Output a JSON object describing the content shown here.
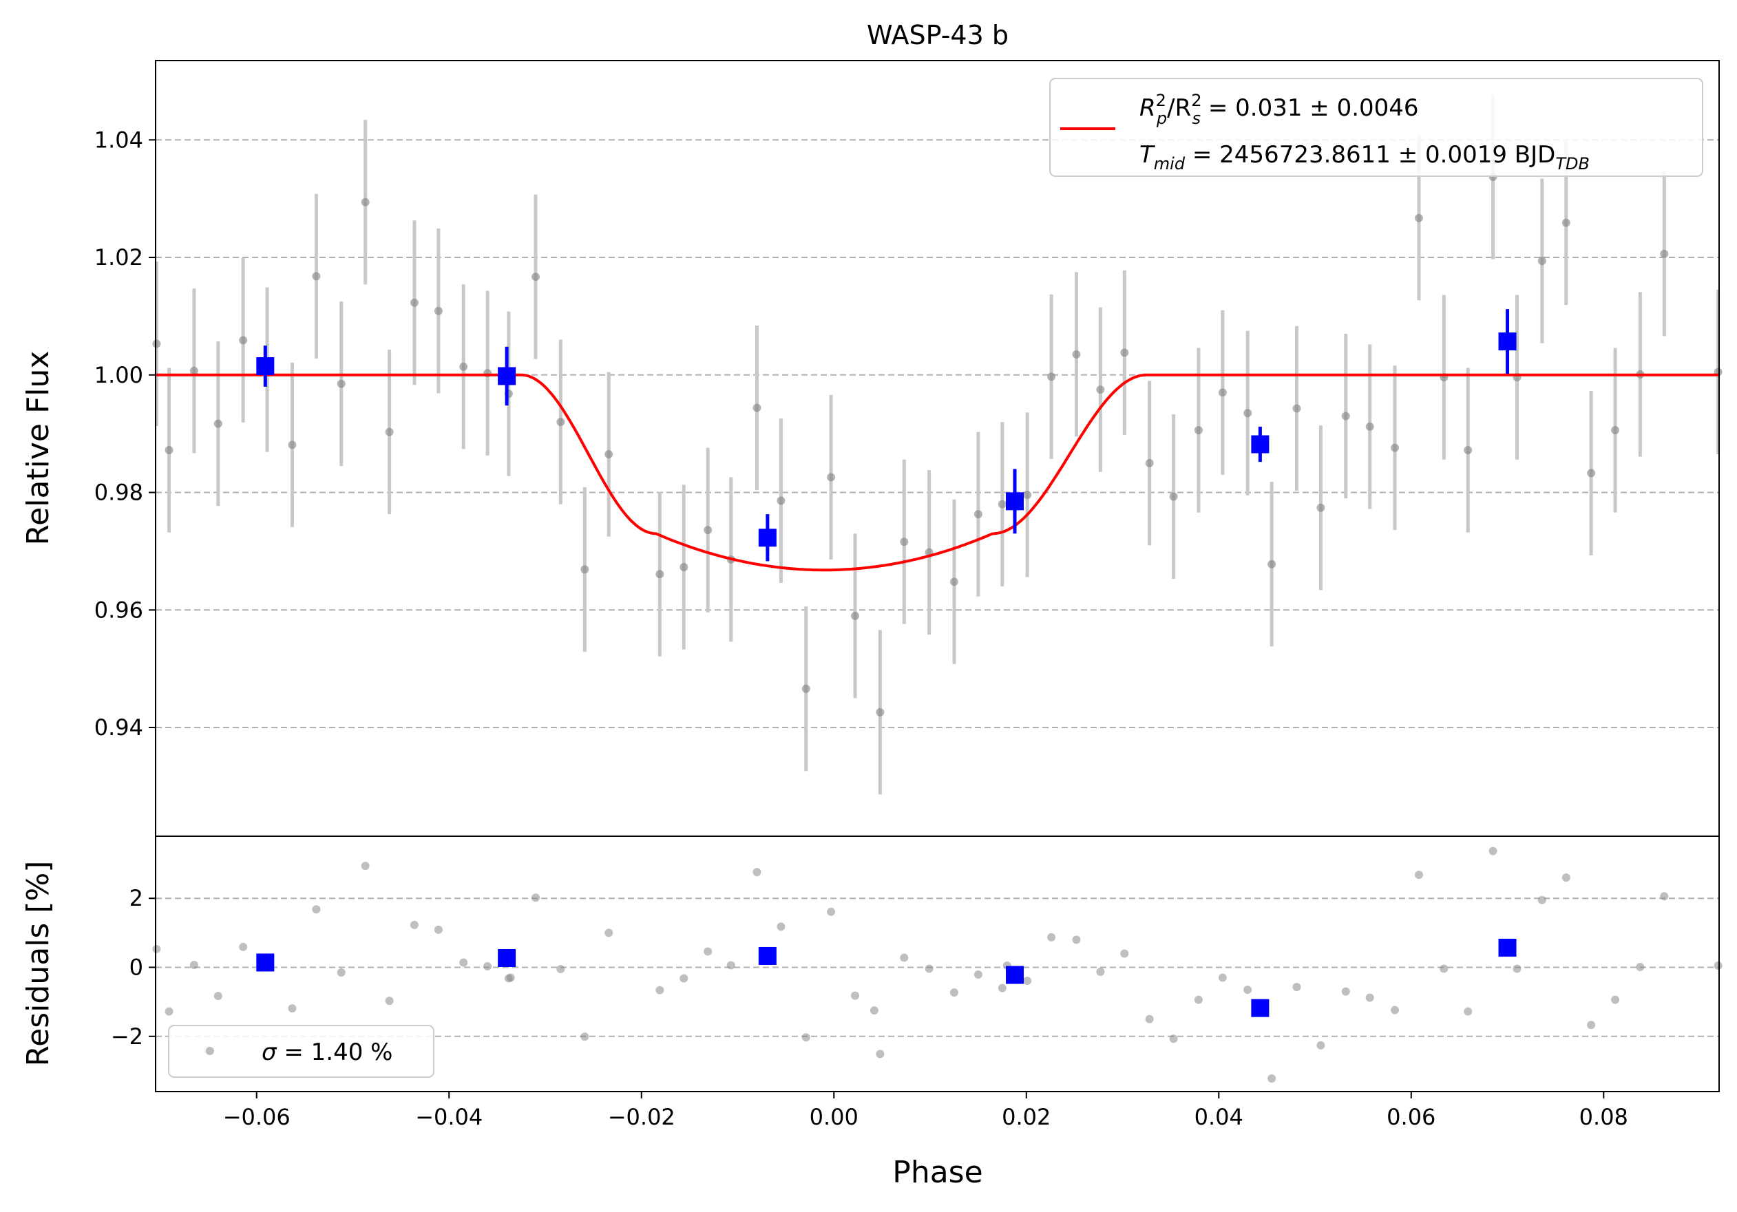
{
  "chart_data": {
    "type": "scatter",
    "title": "WASP-43 b",
    "xlabel": "Phase",
    "xlim": [
      -0.0705,
      0.092
    ],
    "xticks": [
      -0.06,
      -0.04,
      -0.02,
      0.0,
      0.02,
      0.04,
      0.06,
      0.08
    ],
    "xtick_labels": [
      "−0.06",
      "−0.04",
      "−0.02",
      "0.00",
      "0.02",
      "0.04",
      "0.06",
      "0.08"
    ],
    "grid": "horizontal dashed",
    "colors": {
      "raw": "#808080",
      "raw_err": "#c8c8c8",
      "binned": "#0000ff",
      "model": "#ff0000",
      "grid": "#b0b0b0"
    },
    "top_panel": {
      "ylabel": "Relative Flux",
      "ylim": [
        0.9215,
        1.0535
      ],
      "yticks": [
        0.94,
        0.96,
        0.98,
        1.0,
        1.02,
        1.04
      ],
      "ytick_labels": [
        "0.94",
        "0.96",
        "0.98",
        "1.00",
        "1.02",
        "1.04"
      ],
      "raw_error": 0.014,
      "raw_x": [
        -0.0704,
        -0.0691,
        -0.0665,
        -0.064,
        -0.0614,
        -0.0589,
        -0.0563,
        -0.0538,
        -0.0512,
        -0.0487,
        -0.0462,
        -0.0436,
        -0.0411,
        -0.0385,
        -0.036,
        -0.0338,
        -0.031,
        -0.0284,
        -0.0259,
        -0.0234,
        -0.0181,
        -0.0156,
        -0.0131,
        -0.0107,
        -0.008,
        -0.0055,
        -0.0029,
        -0.0003,
        0.0022,
        0.0048,
        0.0073,
        0.0099,
        0.0125,
        0.015,
        0.0175,
        0.0201,
        0.0226,
        0.0252,
        0.0277,
        0.0302,
        0.0328,
        0.0353,
        0.0379,
        0.0404,
        0.043,
        0.0455,
        0.0481,
        0.0506,
        0.0532,
        0.0557,
        0.0583,
        0.0608,
        0.0634,
        0.0659,
        0.0685,
        0.071,
        0.0736,
        0.0761,
        0.0787,
        0.0812,
        0.0838,
        0.0863,
        0.0919
      ],
      "raw_y": [
        1.0053,
        0.9872,
        1.0007,
        0.9917,
        1.0059,
        1.0009,
        0.9881,
        1.0168,
        0.9985,
        1.0294,
        0.9903,
        1.0123,
        1.0109,
        1.0014,
        1.0003,
        0.9968,
        1.0167,
        0.992,
        0.9669,
        0.9865,
        0.9661,
        0.9673,
        0.9736,
        0.9686,
        0.9944,
        0.9786,
        0.9466,
        0.9826,
        0.959,
        0.9426,
        0.9716,
        0.9698,
        0.9648,
        0.9763,
        0.978,
        0.9796,
        0.9997,
        1.0035,
        0.9975,
        1.0038,
        0.985,
        0.9793,
        0.9906,
        0.997,
        0.9935,
        0.9678,
        0.9943,
        0.9774,
        0.993,
        0.9912,
        0.9876,
        1.0267,
        0.9996,
        0.9872,
        1.0337,
        0.9996,
        1.0194,
        1.0259,
        0.9833,
        0.9906,
        1.0001,
        1.0206,
        1.0005
      ],
      "binned_x": [
        -0.0591,
        -0.034,
        -0.0069,
        0.0188,
        0.0443,
        0.07
      ],
      "binned_y": [
        1.0015,
        0.9998,
        0.9723,
        0.9785,
        0.9882,
        1.0057
      ],
      "binned_err": [
        0.0035,
        0.005,
        0.004,
        0.0055,
        0.003,
        0.0055
      ],
      "model_ingress_start": -0.0325,
      "model_ingress_end": -0.0185,
      "model_egress_start": 0.0165,
      "model_egress_end": 0.0325,
      "model_min": 0.9668,
      "model_edge_depth": 0.973
    },
    "bottom_panel": {
      "ylabel": "Residuals [%]",
      "ylim": [
        -3.6,
        3.8
      ],
      "yticks": [
        -2,
        0,
        2
      ],
      "ytick_labels": [
        "−2",
        "0",
        "2"
      ],
      "raw_x": [
        -0.0704,
        -0.0691,
        -0.0665,
        -0.064,
        -0.0614,
        -0.0589,
        -0.0563,
        -0.0538,
        -0.0512,
        -0.0487,
        -0.0462,
        -0.0436,
        -0.0411,
        -0.0385,
        -0.036,
        -0.0338,
        -0.031,
        -0.0284,
        -0.0259,
        -0.0234,
        -0.0181,
        -0.0156,
        -0.0131,
        -0.0107,
        -0.008,
        -0.0055,
        -0.0029,
        -0.0003,
        0.0022,
        0.0048,
        0.0073,
        0.0099,
        0.0125,
        0.015,
        0.0175,
        0.0201,
        0.0226,
        0.0252,
        0.0277,
        0.0302,
        0.0328,
        0.0353,
        0.0379,
        0.0404,
        0.043,
        0.0455,
        0.0481,
        0.0506,
        0.0532,
        0.0557,
        0.0583,
        0.0608,
        0.0634,
        0.0659,
        0.0685,
        0.071,
        0.0736,
        0.0761,
        0.0787,
        0.0812,
        0.0838,
        0.0863,
        0.0919,
        -0.0651,
        0.018,
        0.0042,
        -0.0336
      ],
      "raw_y": [
        0.53,
        -1.28,
        0.07,
        -0.83,
        0.59,
        0.09,
        -1.19,
        1.68,
        -0.15,
        2.94,
        -0.97,
        1.23,
        1.09,
        0.14,
        0.03,
        -0.32,
        2.02,
        -0.05,
        -2.01,
        1.0,
        -0.66,
        -0.32,
        0.46,
        0.06,
        2.76,
        1.18,
        -2.03,
        1.61,
        -0.82,
        -2.51,
        0.28,
        -0.04,
        -0.73,
        -0.21,
        -0.6,
        -0.39,
        0.87,
        0.8,
        -0.13,
        0.4,
        -1.5,
        -2.07,
        -0.94,
        -0.3,
        -0.65,
        -3.22,
        -0.57,
        -2.26,
        -0.7,
        -0.88,
        -1.24,
        2.68,
        -0.04,
        -1.28,
        3.37,
        -0.04,
        1.95,
        2.6,
        -1.67,
        -0.94,
        0.01,
        2.06,
        0.05,
        -2.4,
        0.05,
        -1.25,
        -0.3
      ],
      "binned_x": [
        -0.0591,
        -0.034,
        -0.0069,
        0.0188,
        0.0443,
        0.07
      ],
      "binned_y": [
        0.14,
        0.27,
        0.33,
        -0.22,
        -1.18,
        0.57
      ]
    },
    "legend_top": {
      "placement": "top-right",
      "line1_main": "R",
      "line1_sub_p": "p",
      "line1_sup": "2",
      "line1_slash": "/R",
      "line1_sub_s": "s",
      "line1_rest": " = 0.031 ± 0.0046",
      "line2_main": "T",
      "line2_sub": "mid",
      "line2_rest": " = 2456723.8611 ± 0.0019 BJD",
      "line2_sub2": "TDB"
    },
    "legend_bottom": {
      "placement": "bottom-left",
      "sigma": "σ",
      "text": " = 1.40 %"
    }
  }
}
